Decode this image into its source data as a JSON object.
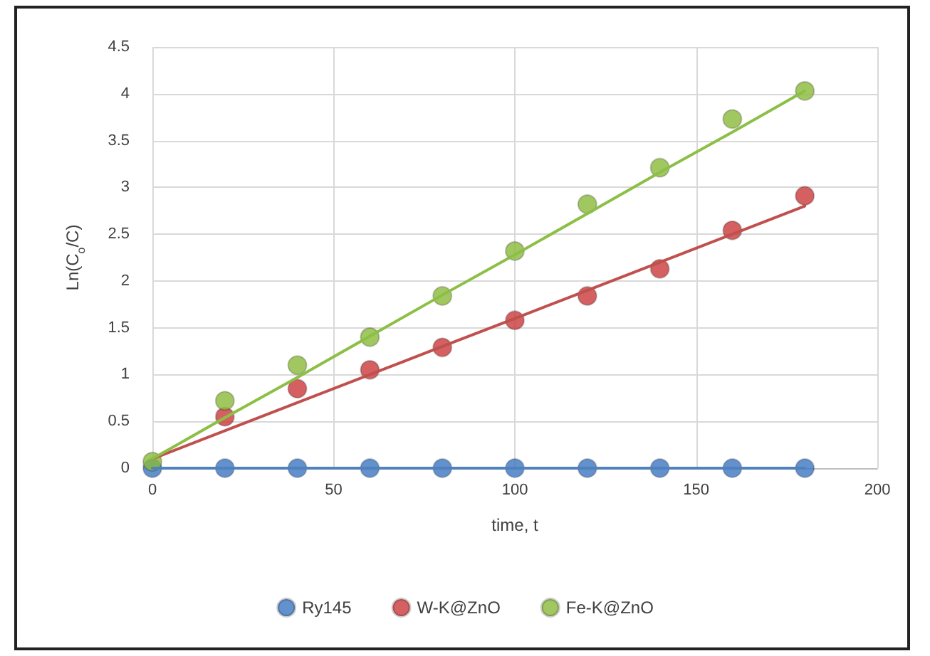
{
  "chart_data": {
    "type": "scatter",
    "xlabel": "time, t",
    "ylabel": "Ln(C$_{o}$/C)",
    "x": [
      0,
      20,
      40,
      60,
      80,
      100,
      120,
      140,
      160,
      180
    ],
    "series": [
      {
        "name": "Ry145",
        "color": "#3b76c2",
        "values": [
          0,
          0,
          0,
          0,
          0,
          0,
          0,
          0,
          0,
          0
        ]
      },
      {
        "name": "W-K@ZnO",
        "color": "#c9383a",
        "values": [
          null,
          0.55,
          0.85,
          1.05,
          1.29,
          1.58,
          1.84,
          2.13,
          2.54,
          2.91
        ]
      },
      {
        "name": "Fe-K@ZnO",
        "color": "#8ab93a",
        "values": [
          0.07,
          0.72,
          1.1,
          1.4,
          1.84,
          2.32,
          2.82,
          3.21,
          3.73,
          4.03
        ]
      },
      {
        "type": "line",
        "color": "#4f81bd",
        "values": [
          0,
          0,
          0,
          0,
          0,
          0,
          0,
          0,
          0,
          0
        ],
        "marker": "none"
      },
      {
        "type": "line",
        "color": "#c0504d",
        "values": [
          0.1,
          0.4,
          0.7,
          1.0,
          1.3,
          1.6,
          1.9,
          2.2,
          2.5,
          2.8
        ],
        "marker": "none"
      },
      {
        "type": "line",
        "color": "#8cbf45",
        "values": [
          0.1,
          0.54,
          0.97,
          1.41,
          1.85,
          2.28,
          2.72,
          3.16,
          3.59,
          4.03
        ],
        "marker": "none"
      }
    ],
    "xlim": [
      0,
      200
    ],
    "xticks": [
      0,
      50,
      100,
      150,
      200
    ],
    "ylim": [
      0,
      4.5
    ],
    "yticks": [
      0,
      0.5,
      1,
      1.5,
      2,
      2.5,
      3,
      3.5,
      4,
      4.5
    ],
    "grid": true,
    "legend": "bottom",
    "marker": "circle"
  }
}
